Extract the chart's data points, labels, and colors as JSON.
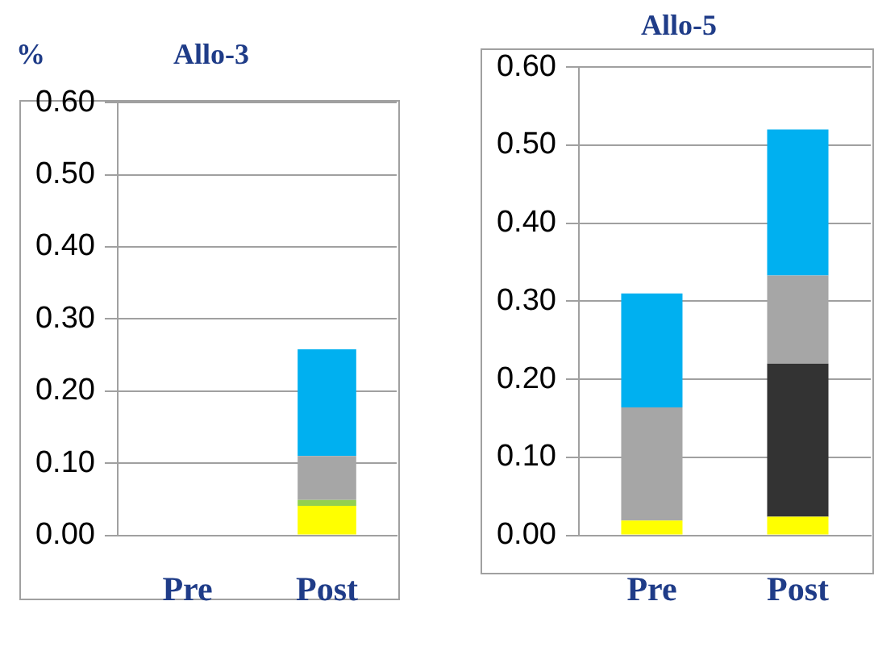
{
  "chart_data": [
    {
      "type": "bar",
      "title": "Allo-3",
      "ylabel": "%",
      "categories": [
        "Pre",
        "Post"
      ],
      "stacked": true,
      "grid": "y",
      "legend": false,
      "series": [
        {
          "color": "#ffff00",
          "values": [
            0,
            0.041
          ]
        },
        {
          "color": "#92d050",
          "values": [
            0,
            0.008
          ]
        },
        {
          "color": "#333333",
          "values": [
            0,
            0
          ]
        },
        {
          "color": "#a6a6a6",
          "values": [
            0,
            0.061
          ]
        },
        {
          "color": "#00b0f0",
          "values": [
            0,
            0.148
          ]
        }
      ],
      "ylim": [
        0,
        0.6
      ],
      "yticks": [
        {
          "value": 0,
          "label": "0.00"
        },
        {
          "value": 0.1,
          "label": "0.10"
        },
        {
          "value": 0.2,
          "label": "0.20"
        },
        {
          "value": 0.3,
          "label": "0.30"
        },
        {
          "value": 0.4,
          "label": "0.40"
        },
        {
          "value": 0.5,
          "label": "0.50"
        },
        {
          "value": 0.6,
          "label": "0.60"
        }
      ]
    },
    {
      "type": "bar",
      "title": "Allo-5",
      "categories": [
        "Pre",
        "Post"
      ],
      "stacked": true,
      "grid": "y",
      "legend": false,
      "series": [
        {
          "color": "#ffff00",
          "values": [
            0.019,
            0.024
          ]
        },
        {
          "color": "#92d050",
          "values": [
            0,
            0
          ]
        },
        {
          "color": "#333333",
          "values": [
            0,
            0.196
          ]
        },
        {
          "color": "#a6a6a6",
          "values": [
            0.145,
            0.113
          ]
        },
        {
          "color": "#00b0f0",
          "values": [
            0.146,
            0.187
          ]
        }
      ],
      "ylim": [
        0,
        0.6
      ],
      "yticks": [
        {
          "value": 0,
          "label": "0.00"
        },
        {
          "value": 0.1,
          "label": "0.10"
        },
        {
          "value": 0.2,
          "label": "0.20"
        },
        {
          "value": 0.3,
          "label": "0.30"
        },
        {
          "value": 0.4,
          "label": "0.40"
        },
        {
          "value": 0.5,
          "label": "0.50"
        },
        {
          "value": 0.6,
          "label": "0.60"
        }
      ]
    }
  ]
}
